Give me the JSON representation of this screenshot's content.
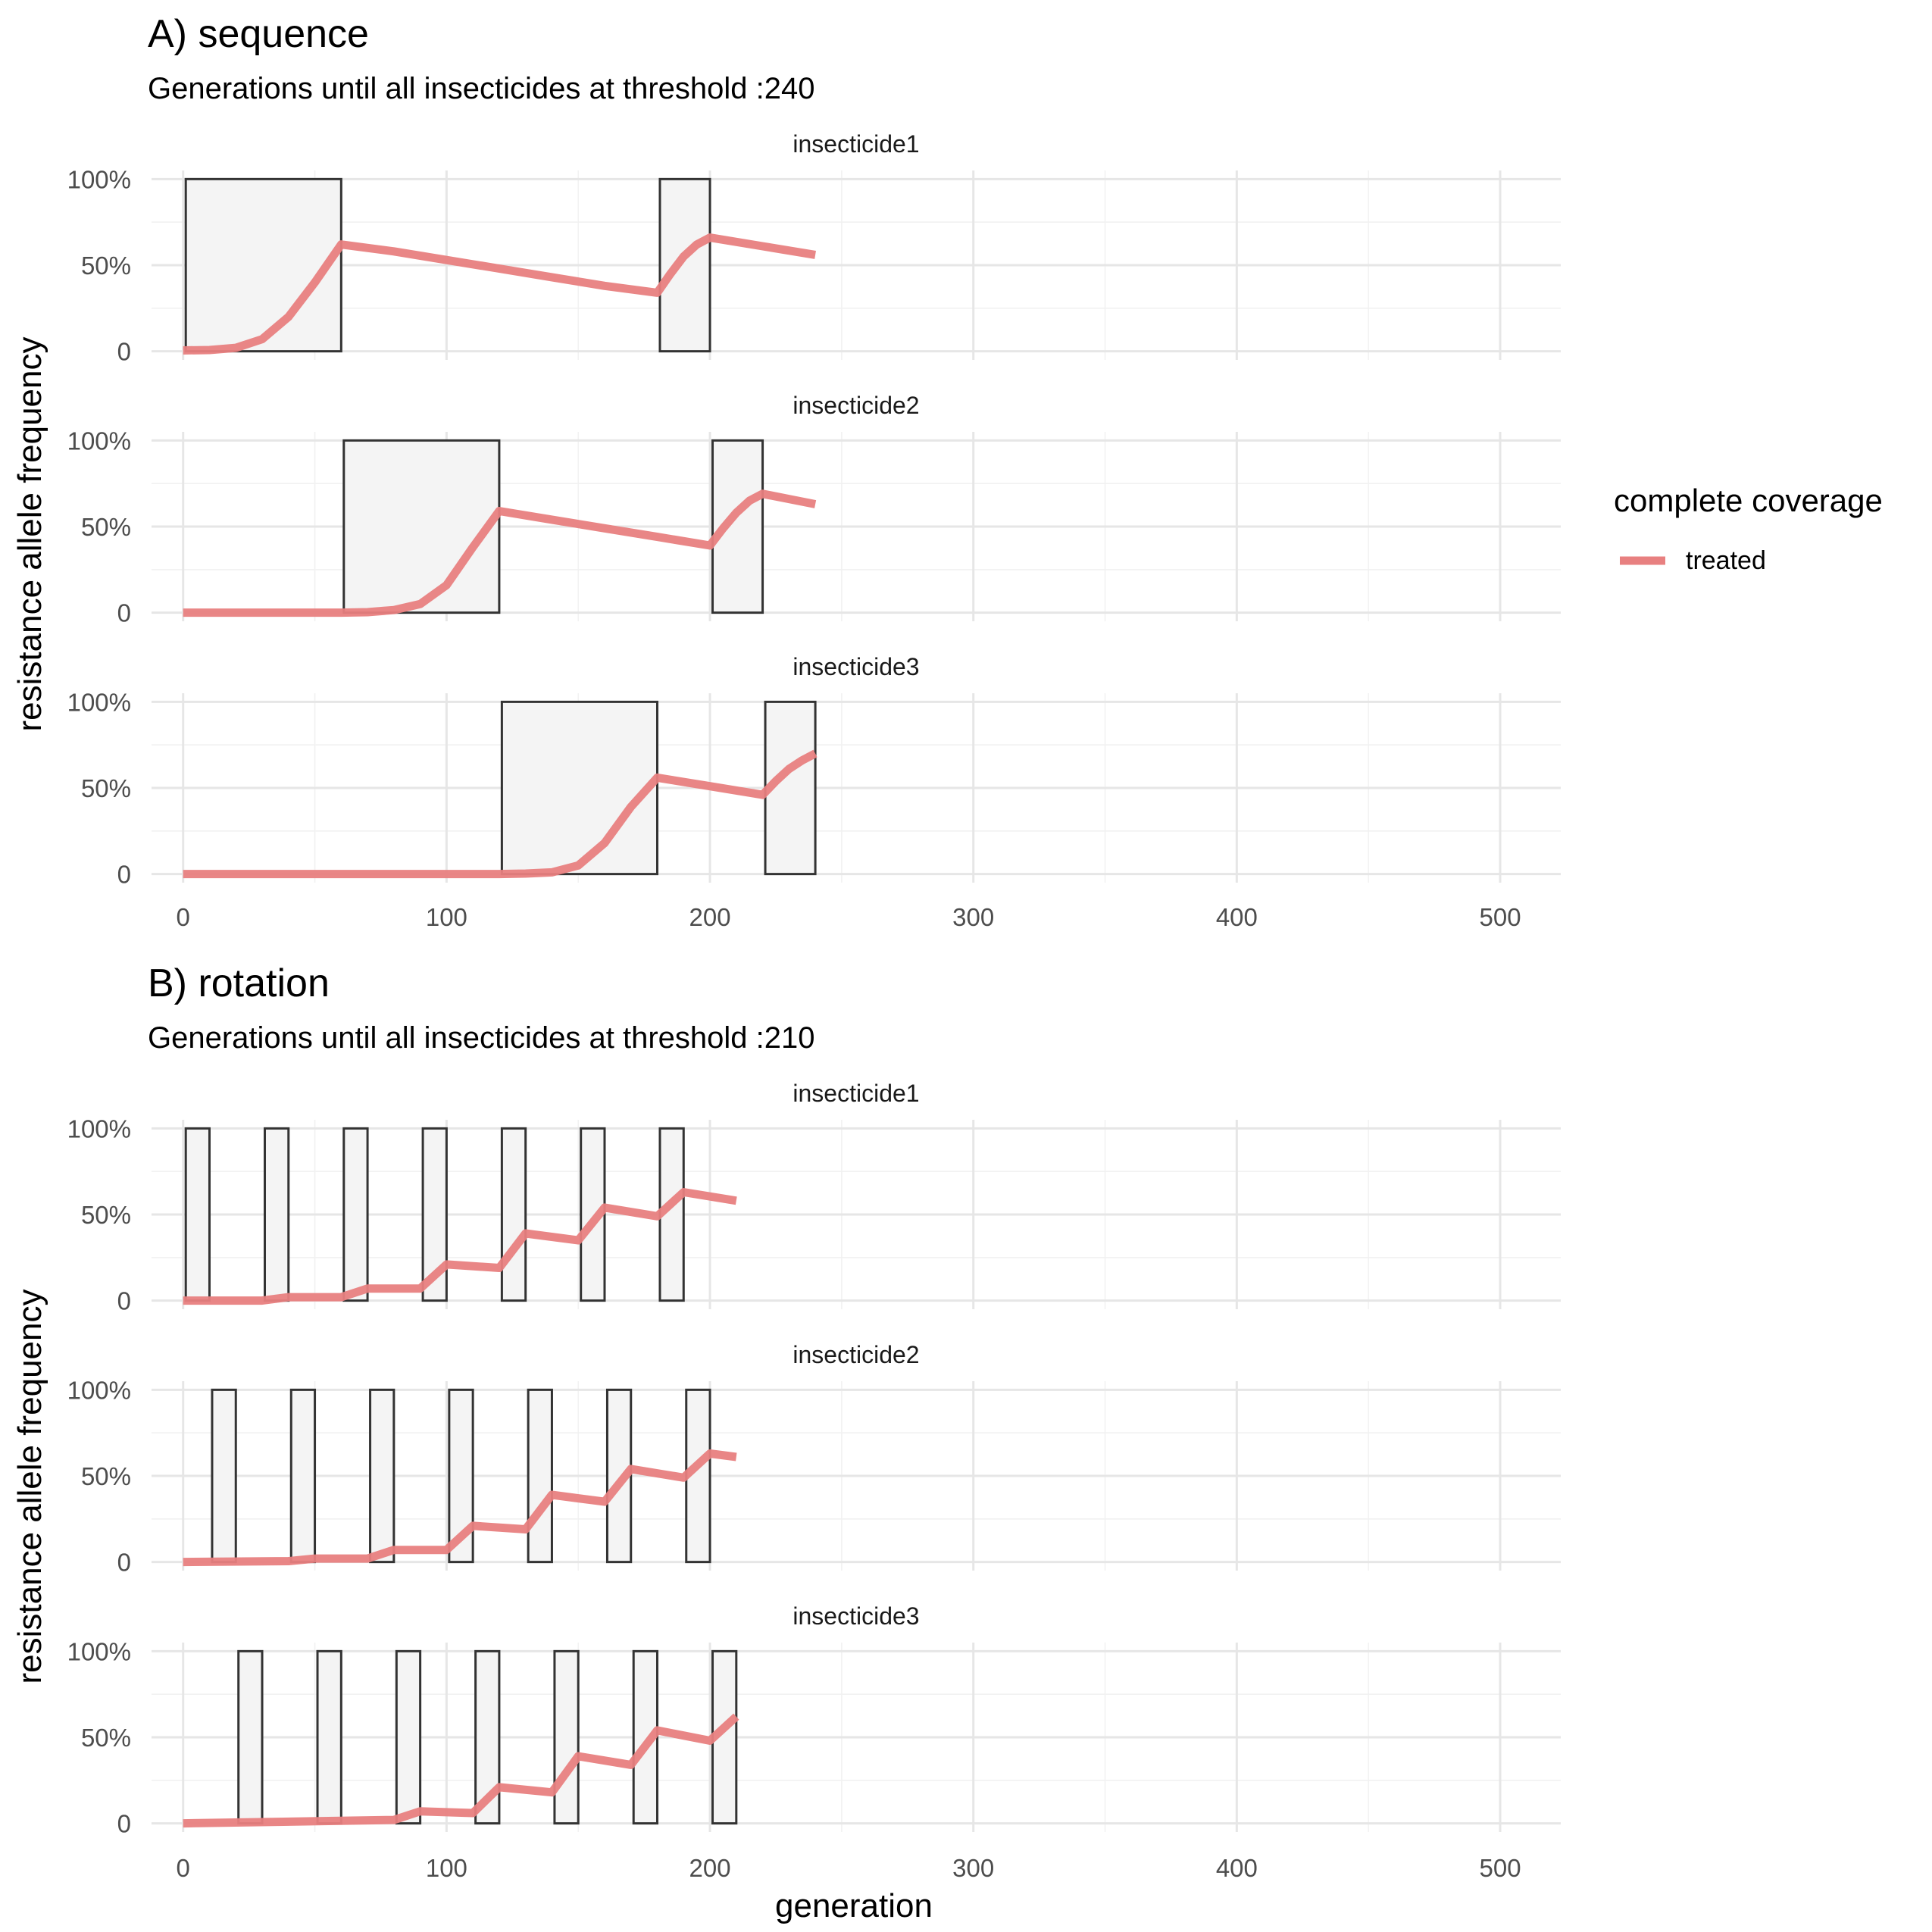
{
  "chart_data": {
    "type": "line",
    "x_label": "generation",
    "y_label": "resistance allele frequency",
    "x_ticks": [
      0,
      100,
      200,
      300,
      400,
      500
    ],
    "xlim": [
      -12,
      523
    ],
    "y_ticks": [
      0,
      0.5,
      1.0
    ],
    "y_tick_labels": [
      "0",
      "50%",
      "100%"
    ],
    "ylim": [
      -0.05,
      1.05
    ],
    "grid": true,
    "legend": {
      "title": "complete coverage",
      "position": "right",
      "entries": [
        {
          "label": "treated",
          "color": "#E88080"
        }
      ]
    },
    "line_color": "#E88080",
    "box_fill": "#f4f4f4",
    "box_stroke": "#333333",
    "panels": [
      {
        "title": "A) sequence",
        "subtitle": "Generations until all insecticides at threshold :240",
        "facets": [
          {
            "label": "insecticide1",
            "deployments": [
              [
                1,
                60
              ],
              [
                181,
                200
              ]
            ],
            "series": [
              [
                0,
                0.005
              ],
              [
                10,
                0.007
              ],
              [
                20,
                0.02
              ],
              [
                30,
                0.07
              ],
              [
                40,
                0.2
              ],
              [
                50,
                0.4
              ],
              [
                60,
                0.62
              ],
              [
                80,
                0.58
              ],
              [
                100,
                0.53
              ],
              [
                120,
                0.48
              ],
              [
                140,
                0.43
              ],
              [
                160,
                0.38
              ],
              [
                180,
                0.34
              ],
              [
                185,
                0.45
              ],
              [
                190,
                0.55
              ],
              [
                195,
                0.62
              ],
              [
                200,
                0.66
              ],
              [
                220,
                0.61
              ],
              [
                240,
                0.56
              ]
            ]
          },
          {
            "label": "insecticide2",
            "deployments": [
              [
                61,
                120
              ],
              [
                201,
                220
              ]
            ],
            "series": [
              [
                0,
                0
              ],
              [
                60,
                0.0
              ],
              [
                70,
                0.003
              ],
              [
                80,
                0.015
              ],
              [
                90,
                0.05
              ],
              [
                100,
                0.16
              ],
              [
                110,
                0.38
              ],
              [
                120,
                0.59
              ],
              [
                140,
                0.54
              ],
              [
                160,
                0.49
              ],
              [
                180,
                0.44
              ],
              [
                200,
                0.39
              ],
              [
                205,
                0.49
              ],
              [
                210,
                0.58
              ],
              [
                215,
                0.65
              ],
              [
                220,
                0.69
              ],
              [
                230,
                0.66
              ],
              [
                240,
                0.63
              ]
            ]
          },
          {
            "label": "insecticide3",
            "deployments": [
              [
                121,
                180
              ],
              [
                221,
                240
              ]
            ],
            "series": [
              [
                0,
                0
              ],
              [
                120,
                0
              ],
              [
                130,
                0.003
              ],
              [
                140,
                0.01
              ],
              [
                150,
                0.05
              ],
              [
                160,
                0.18
              ],
              [
                170,
                0.39
              ],
              [
                180,
                0.56
              ],
              [
                200,
                0.51
              ],
              [
                220,
                0.46
              ],
              [
                225,
                0.54
              ],
              [
                230,
                0.61
              ],
              [
                235,
                0.66
              ],
              [
                240,
                0.7
              ]
            ]
          }
        ]
      },
      {
        "title": "B) rotation",
        "subtitle": "Generations until all insecticides at threshold :210",
        "facets": [
          {
            "label": "insecticide1",
            "deployments": [
              [
                1,
                10
              ],
              [
                31,
                40
              ],
              [
                61,
                70
              ],
              [
                91,
                100
              ],
              [
                121,
                130
              ],
              [
                151,
                160
              ],
              [
                181,
                190
              ]
            ],
            "series": [
              [
                0,
                0
              ],
              [
                30,
                0
              ],
              [
                40,
                0.02
              ],
              [
                60,
                0.02
              ],
              [
                70,
                0.07
              ],
              [
                90,
                0.07
              ],
              [
                100,
                0.21
              ],
              [
                120,
                0.19
              ],
              [
                130,
                0.39
              ],
              [
                150,
                0.35
              ],
              [
                160,
                0.54
              ],
              [
                180,
                0.49
              ],
              [
                190,
                0.63
              ],
              [
                210,
                0.58
              ]
            ]
          },
          {
            "label": "insecticide2",
            "deployments": [
              [
                11,
                20
              ],
              [
                41,
                50
              ],
              [
                71,
                80
              ],
              [
                101,
                110
              ],
              [
                131,
                140
              ],
              [
                161,
                170
              ],
              [
                191,
                200
              ]
            ],
            "series": [
              [
                0,
                0
              ],
              [
                40,
                0.005
              ],
              [
                50,
                0.02
              ],
              [
                70,
                0.02
              ],
              [
                80,
                0.07
              ],
              [
                100,
                0.07
              ],
              [
                110,
                0.21
              ],
              [
                130,
                0.19
              ],
              [
                140,
                0.39
              ],
              [
                160,
                0.35
              ],
              [
                170,
                0.54
              ],
              [
                190,
                0.49
              ],
              [
                200,
                0.63
              ],
              [
                210,
                0.61
              ]
            ]
          },
          {
            "label": "insecticide3",
            "deployments": [
              [
                21,
                30
              ],
              [
                51,
                60
              ],
              [
                81,
                90
              ],
              [
                111,
                120
              ],
              [
                141,
                150
              ],
              [
                171,
                180
              ],
              [
                201,
                210
              ]
            ],
            "series": [
              [
                0,
                0
              ],
              [
                80,
                0.02
              ],
              [
                90,
                0.07
              ],
              [
                110,
                0.06
              ],
              [
                120,
                0.21
              ],
              [
                140,
                0.18
              ],
              [
                150,
                0.39
              ],
              [
                170,
                0.34
              ],
              [
                180,
                0.54
              ],
              [
                200,
                0.48
              ],
              [
                210,
                0.62
              ]
            ]
          }
        ]
      }
    ]
  }
}
